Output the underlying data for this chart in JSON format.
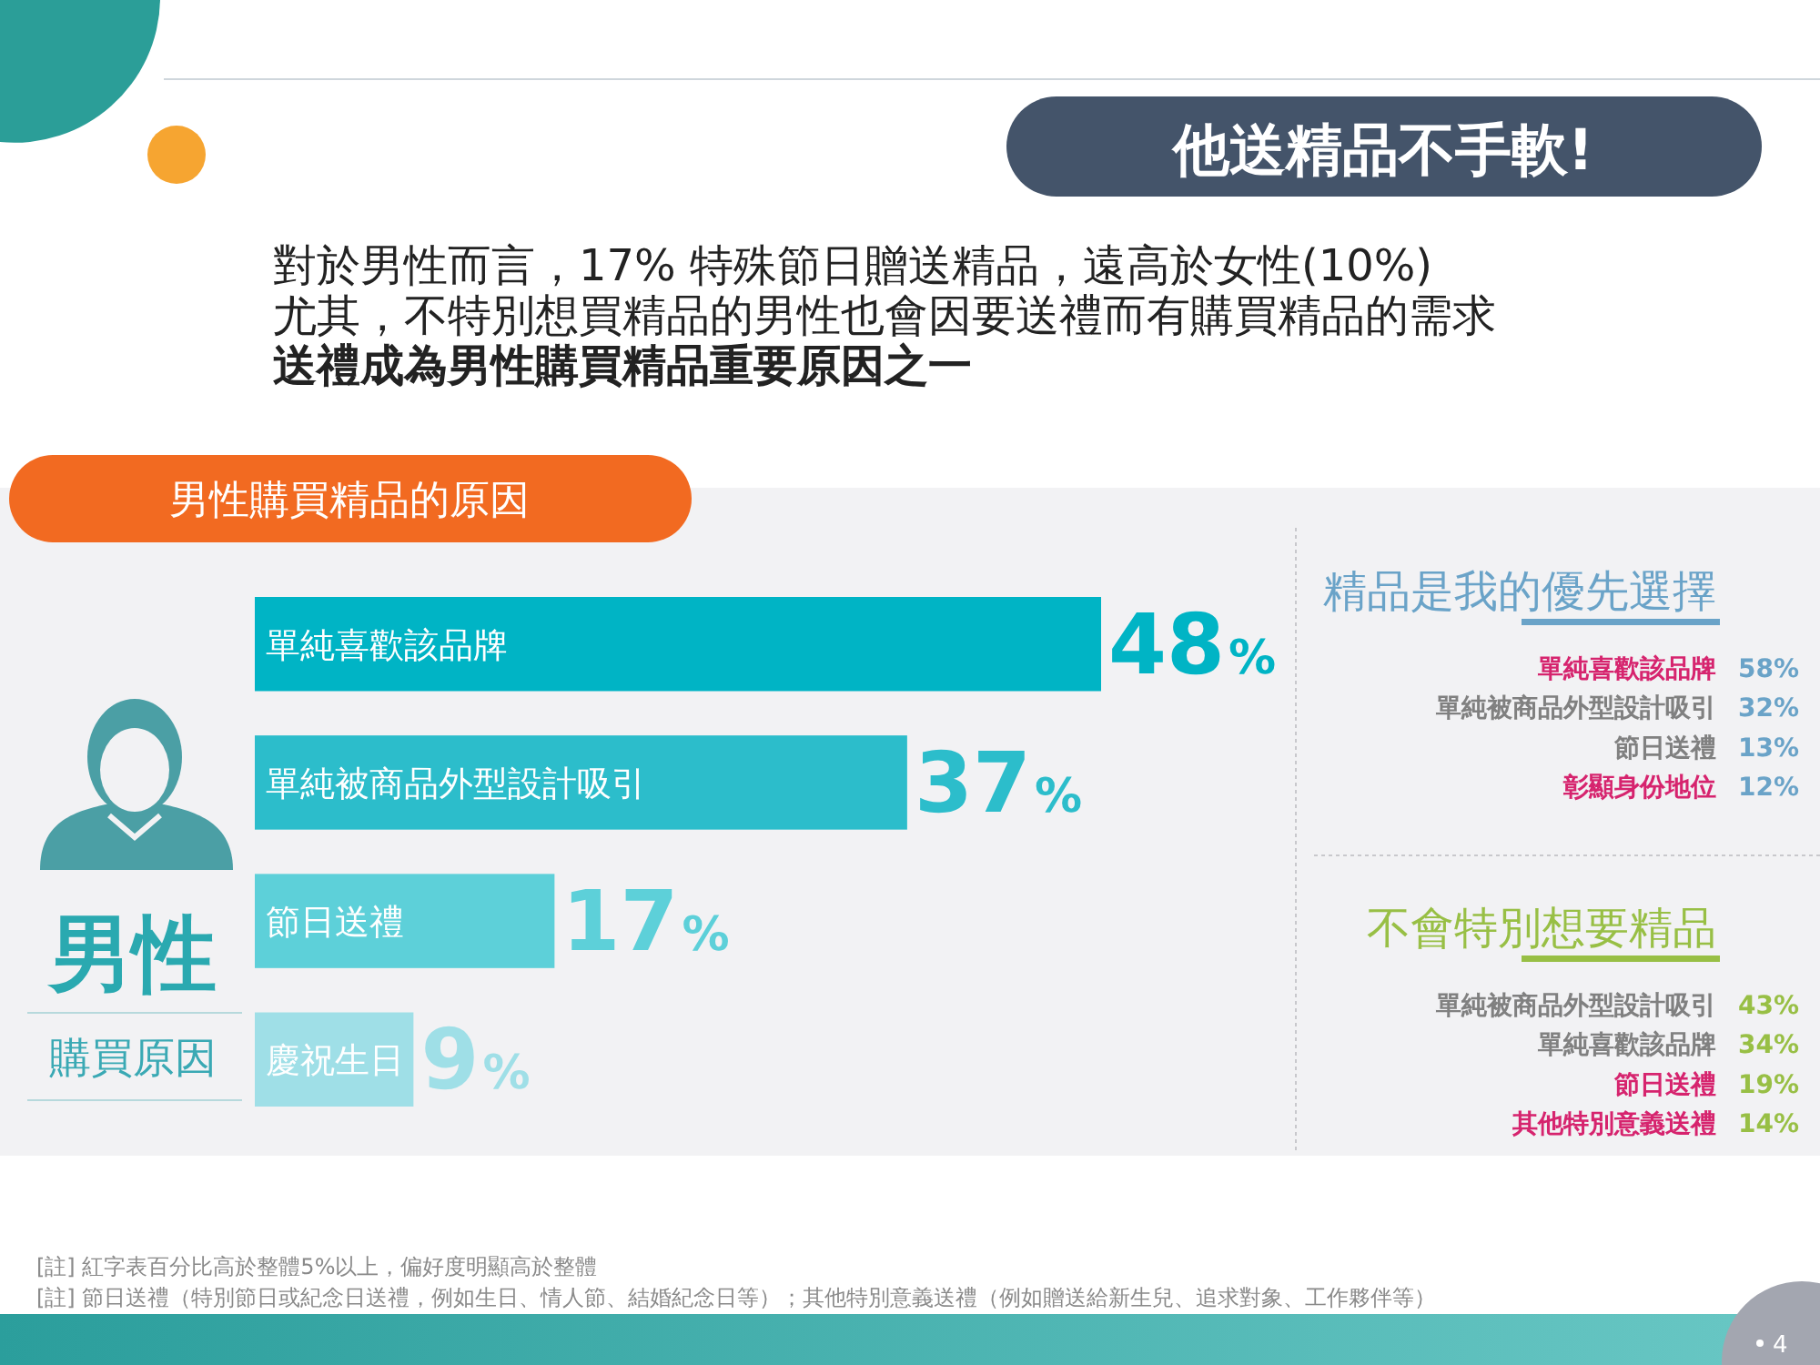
{
  "chart_data": [
    {
      "type": "other",
      "title": "他送精品不手軟!",
      "annotations": [
        "對於男性而言，17% 特殊節日贈送精品，遠高於女性(10%)",
        "尤其，不特別想買精品的男性也會因要送禮而有購買精品的需求",
        "送禮成為男性購買精品重要原因之一",
        "[註] 紅字表百分比高於整體5%以上，偏好度明顯高於整體",
        "[註] 節日送禮（特別節日或紀念日送禮，例如生日、情人節、結婚紀念日等）；其他特別意義送禮（例如贈送給新生兒、追求對象、工作夥伴等）",
        "4"
      ]
    },
    {
      "type": "bar",
      "orientation": "horizontal",
      "title": "男性購買精品的原因",
      "categories": [
        "單純喜歡該品牌",
        "單純被商品外型設計吸引",
        "節日送禮",
        "慶祝生日"
      ],
      "values": [
        48,
        37,
        17,
        9
      ],
      "colors": [
        "#00b4c5",
        "#2cbdcb",
        "#5dd0d9",
        "#9fdfe7"
      ],
      "value_labels": [
        "48%",
        "37%",
        "17%",
        "9%"
      ],
      "annotations": [
        "男性",
        "購買原因"
      ]
    },
    {
      "type": "other",
      "title": "精品是我的優先選擇",
      "categories": [
        "單純喜歡該品牌",
        "單純被商品外型設計吸引",
        "節日送禮",
        "彰顯身份地位"
      ],
      "values": [
        58,
        32,
        13,
        12
      ],
      "value_labels": [
        "58%",
        "32%",
        "13%",
        "12%"
      ],
      "color": "#6aa3c8",
      "colors": [
        "#d6246e",
        "#808080",
        "#808080",
        "#d6246e"
      ]
    },
    {
      "type": "other",
      "title": "不會特別想要精品",
      "categories": [
        "單純被商品外型設計吸引",
        "單純喜歡該品牌",
        "節日送禮",
        "其他特別意義送禮"
      ],
      "values": [
        43,
        34,
        19,
        14
      ],
      "value_labels": [
        "43%",
        "34%",
        "19%",
        "14%"
      ],
      "color": "#98bf45",
      "colors": [
        "#808080",
        "#808080",
        "#d6246e",
        "#d6246e"
      ]
    }
  ]
}
